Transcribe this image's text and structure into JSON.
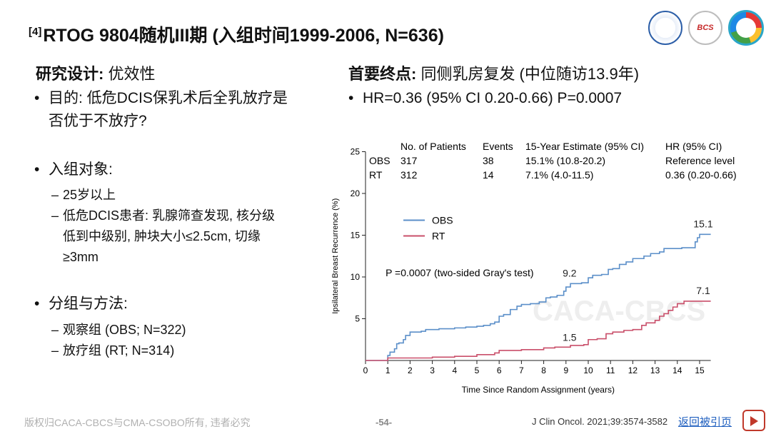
{
  "header": {
    "superscript": "[4]",
    "title": "RTOG 9804随机III期 (入组时间1999-2006, N=636)"
  },
  "left": {
    "heading_bold": "研究设计:",
    "heading_rest": " 优效性",
    "purpose_line1": "目的: 低危DCIS保乳术后全乳放疗是",
    "purpose_line2": "否优于不放疗?",
    "population": "入组对象:",
    "pop_items": [
      "25岁以上",
      "低危DCIS患者: 乳腺筛查发现, 核分级",
      "低到中级别, 肿块大小≤2.5cm, 切缘",
      "≥3mm"
    ],
    "groups": "分组与方法:",
    "group_items": [
      "观察组 (OBS; N=322)",
      "放疗组 (RT; N=314)"
    ],
    "bullet_symbol": "•",
    "dash_symbol": "–"
  },
  "right": {
    "heading_bold": "首要终点:",
    "heading_rest": " 同侧乳房复发 (中位随访13.9年)",
    "hr_line": "HR=0.36 (95% CI 0.20-0.66) P=0.0007"
  },
  "chart_data": {
    "type": "line",
    "xlabel": "Time Since Random Assignment (years)",
    "ylabel": "Ipsilateral Breast Recurrence (%)",
    "xlim": [
      0,
      15.5
    ],
    "ylim": [
      0,
      25
    ],
    "xticks": [
      0,
      1,
      2,
      3,
      4,
      5,
      6,
      7,
      8,
      9,
      10,
      11,
      12,
      13,
      14,
      15
    ],
    "yticks": [
      5,
      10,
      15,
      20,
      25
    ],
    "grid": false,
    "table": {
      "headers": [
        "No. of Patients",
        "Events",
        "15-Year Estimate (95% CI)",
        "HR (95% CI)"
      ],
      "rows": [
        {
          "group": "OBS",
          "patients": "317",
          "events": "38",
          "estimate": "15.1% (10.8-20.2)",
          "hr": "Reference level"
        },
        {
          "group": "RT",
          "patients": "312",
          "events": "14",
          "estimate": "7.1% (4.0-11.5)",
          "hr": "0.36 (0.20-0.66)"
        }
      ]
    },
    "legend": {
      "position": "center-left",
      "entries": [
        "OBS",
        "RT"
      ]
    },
    "annotation_p": "P =0.0007 (two-sided Gray's test)",
    "series": [
      {
        "name": "OBS",
        "color": "#5b8fc9",
        "points": [
          [
            0,
            0
          ],
          [
            0.8,
            0
          ],
          [
            1.0,
            0.6
          ],
          [
            1.1,
            1.0
          ],
          [
            1.3,
            1.4
          ],
          [
            1.4,
            2.0
          ],
          [
            1.5,
            2.1
          ],
          [
            1.7,
            2.5
          ],
          [
            1.8,
            3.0
          ],
          [
            2.0,
            3.4
          ],
          [
            2.5,
            3.5
          ],
          [
            2.7,
            3.7
          ],
          [
            3.3,
            3.8
          ],
          [
            4.0,
            3.9
          ],
          [
            4.5,
            4.0
          ],
          [
            5.0,
            4.1
          ],
          [
            5.3,
            4.2
          ],
          [
            5.6,
            4.4
          ],
          [
            5.8,
            4.6
          ],
          [
            6.0,
            5.3
          ],
          [
            6.2,
            5.5
          ],
          [
            6.5,
            6.1
          ],
          [
            6.8,
            6.5
          ],
          [
            7.0,
            6.7
          ],
          [
            7.4,
            6.8
          ],
          [
            7.8,
            7.0
          ],
          [
            8.1,
            7.5
          ],
          [
            8.3,
            7.6
          ],
          [
            8.6,
            7.8
          ],
          [
            8.9,
            8.3
          ],
          [
            9.0,
            8.8
          ],
          [
            9.2,
            9.2
          ],
          [
            9.5,
            9.2
          ],
          [
            9.7,
            9.3
          ],
          [
            10.0,
            9.9
          ],
          [
            10.2,
            10.2
          ],
          [
            10.6,
            10.3
          ],
          [
            10.9,
            10.9
          ],
          [
            11.1,
            11.0
          ],
          [
            11.4,
            11.5
          ],
          [
            11.7,
            11.8
          ],
          [
            12.0,
            12.2
          ],
          [
            12.5,
            12.5
          ],
          [
            12.8,
            12.8
          ],
          [
            13.2,
            13.0
          ],
          [
            13.4,
            13.4
          ],
          [
            13.9,
            13.4
          ],
          [
            14.2,
            13.5
          ],
          [
            14.6,
            13.5
          ],
          [
            14.8,
            14.2
          ],
          [
            14.9,
            14.7
          ],
          [
            15.0,
            15.1
          ],
          [
            15.5,
            15.1
          ]
        ]
      },
      {
        "name": "RT",
        "color": "#c94f6a",
        "points": [
          [
            0,
            0
          ],
          [
            0.8,
            0
          ],
          [
            1.0,
            0.3
          ],
          [
            2.0,
            0.3
          ],
          [
            3.0,
            0.4
          ],
          [
            4.0,
            0.5
          ],
          [
            5.0,
            0.7
          ],
          [
            5.8,
            0.9
          ],
          [
            6.0,
            1.2
          ],
          [
            7.0,
            1.3
          ],
          [
            8.0,
            1.5
          ],
          [
            8.5,
            1.6
          ],
          [
            9.2,
            1.8
          ],
          [
            9.8,
            1.9
          ],
          [
            10.0,
            2.5
          ],
          [
            10.4,
            2.6
          ],
          [
            10.8,
            3.2
          ],
          [
            11.1,
            3.4
          ],
          [
            11.6,
            3.6
          ],
          [
            12.0,
            3.7
          ],
          [
            12.4,
            4.2
          ],
          [
            12.6,
            4.5
          ],
          [
            13.0,
            4.8
          ],
          [
            13.2,
            5.3
          ],
          [
            13.4,
            5.6
          ],
          [
            13.6,
            6.0
          ],
          [
            13.8,
            6.4
          ],
          [
            14.0,
            6.8
          ],
          [
            14.3,
            7.1
          ],
          [
            15.5,
            7.1
          ]
        ]
      }
    ],
    "point_labels": [
      {
        "series": "OBS",
        "x": 9.0,
        "y": 9.2,
        "text": "9.2"
      },
      {
        "series": "OBS",
        "x": 15.0,
        "y": 15.1,
        "text": "15.1"
      },
      {
        "series": "RT",
        "x": 9.0,
        "y": 1.5,
        "text": "1.5"
      },
      {
        "series": "RT",
        "x": 15.0,
        "y": 7.1,
        "text": "7.1"
      }
    ],
    "watermark": "CACA-CBCS"
  },
  "footer": {
    "copyright": "版权归CACA-CBCS与CMA-CSOBO所有, 违者必究",
    "page": "-54-",
    "citation": "J Clin Oncol. 2021;39:3574-3582",
    "back_link": "返回被引页"
  },
  "logos": {
    "logo2_text": "BCS"
  }
}
